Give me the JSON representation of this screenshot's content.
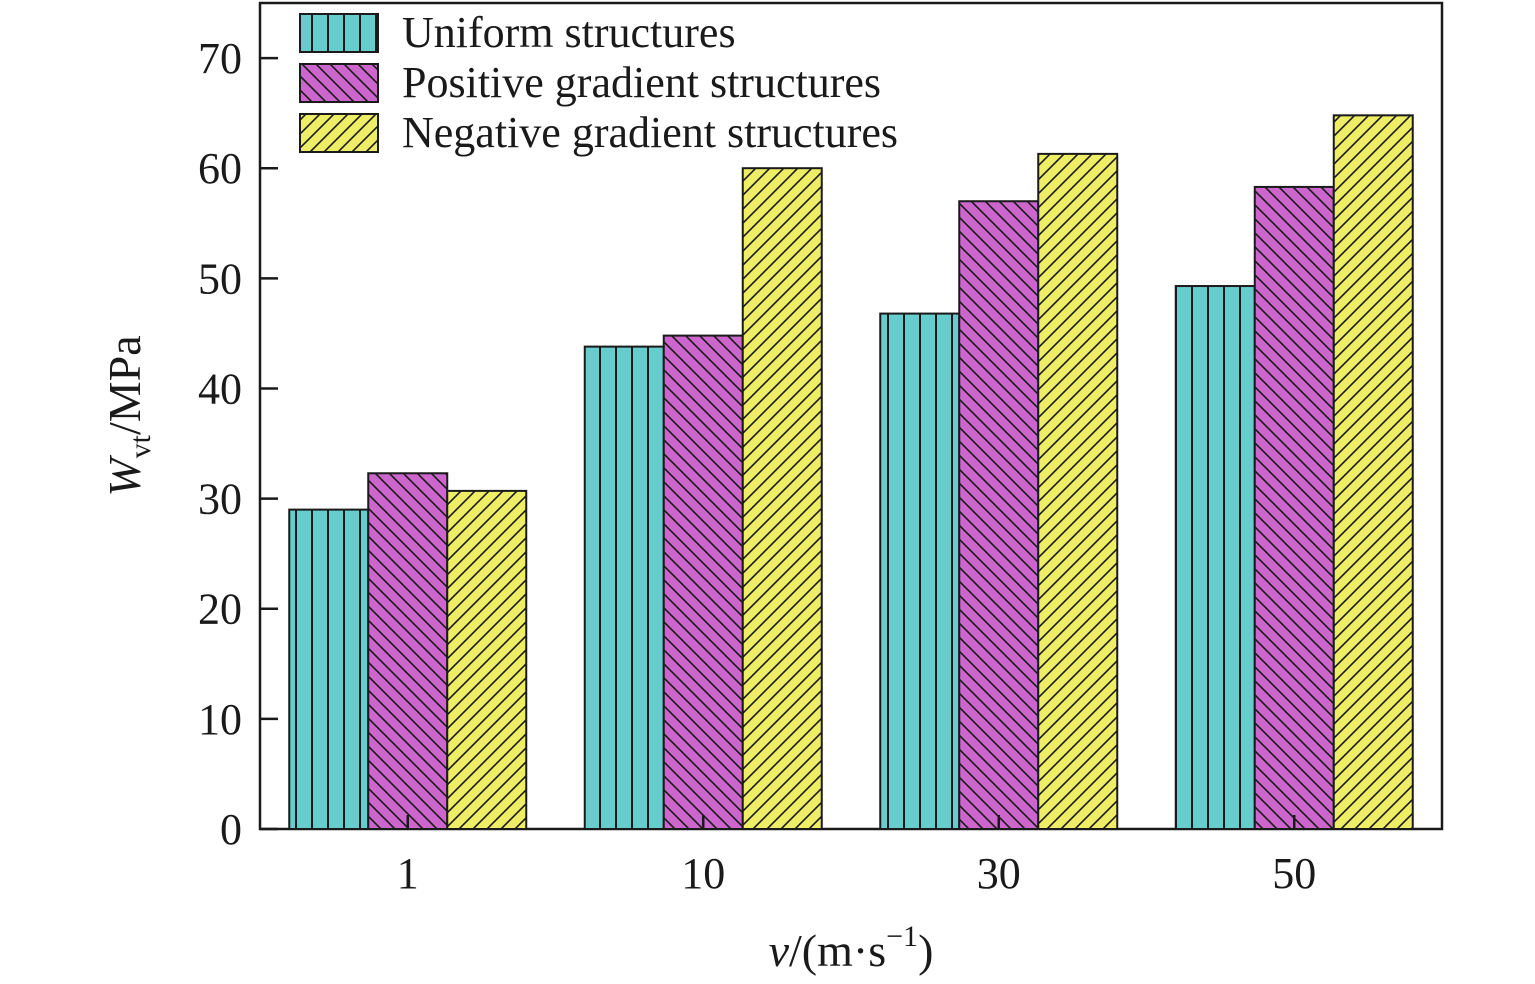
{
  "chart_data": {
    "type": "bar",
    "categories": [
      "1",
      "10",
      "30",
      "50"
    ],
    "series": [
      {
        "name": "Uniform structures",
        "values": [
          29.0,
          43.8,
          46.8,
          49.3
        ],
        "color": "#66cccc",
        "pattern": "vertical"
      },
      {
        "name": "Positive gradient structures",
        "values": [
          32.3,
          44.8,
          57.0,
          58.3
        ],
        "color": "#cc66cc",
        "pattern": "backslash"
      },
      {
        "name": "Negative gradient structures",
        "values": [
          30.7,
          60.0,
          61.3,
          64.8
        ],
        "color": "#eeee66",
        "pattern": "slash"
      }
    ],
    "ylim": [
      0,
      75
    ],
    "yticks": [
      0,
      10,
      20,
      30,
      40,
      50,
      60,
      70
    ],
    "ylabel": {
      "main": "W",
      "sub": "vt",
      "rest": "/MPa"
    },
    "xlabel": {
      "main": "v",
      "rest": "/(m·s",
      "sup": "−1",
      "close": ")"
    },
    "grid": false,
    "legend_position": "top-left"
  }
}
